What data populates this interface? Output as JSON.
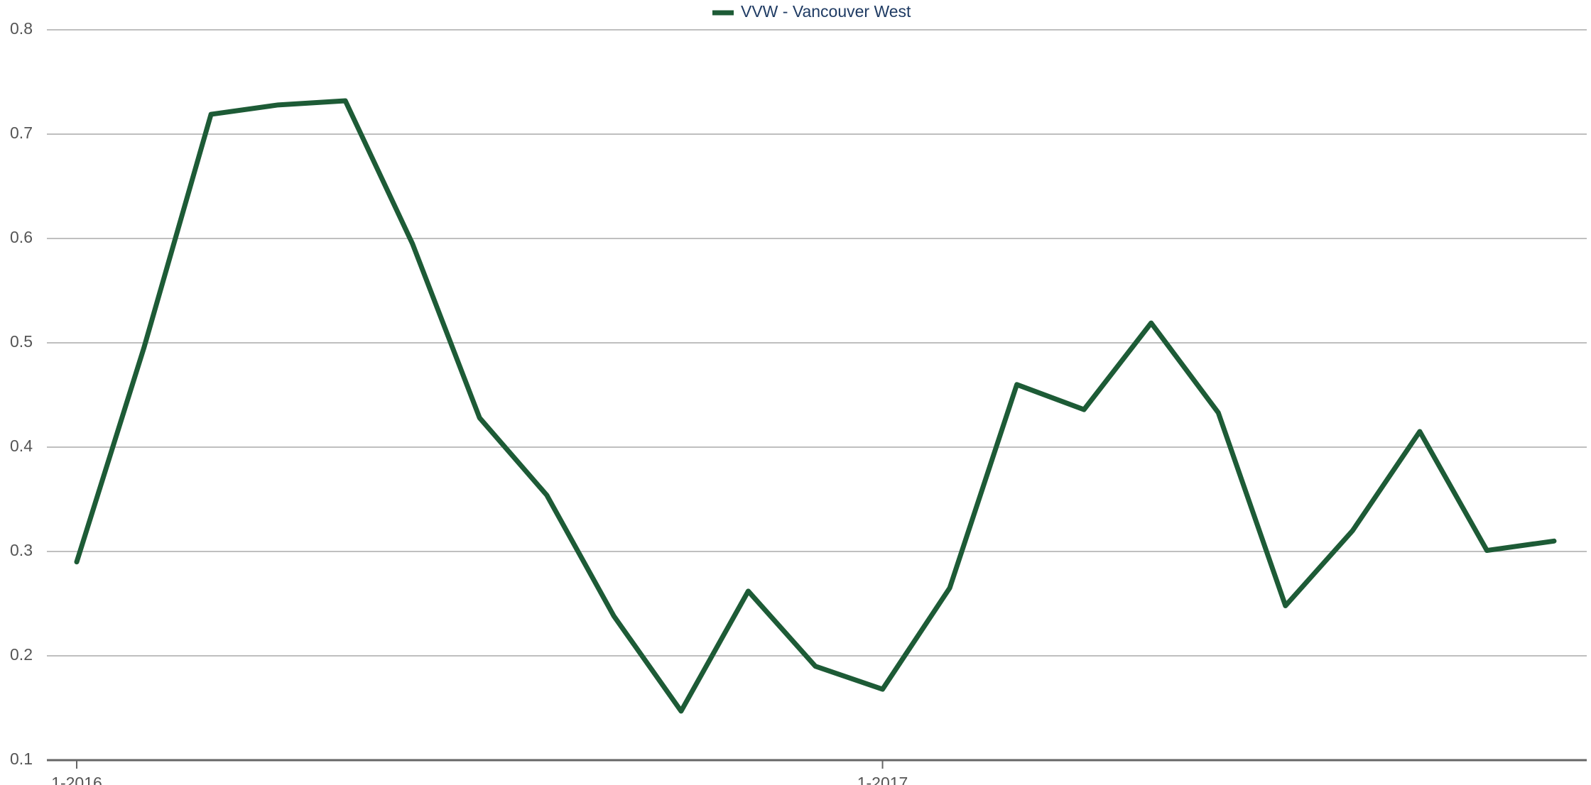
{
  "chart_data": {
    "type": "line",
    "categories": [
      "1-2016",
      null,
      null,
      null,
      null,
      null,
      null,
      null,
      null,
      null,
      null,
      null,
      "1-2017",
      null,
      null,
      null,
      null,
      null,
      null,
      null,
      null,
      null,
      null
    ],
    "series": [
      {
        "name": "VVW - Vancouver West",
        "color": "#1d5b36",
        "values": [
          0.29,
          0.495,
          0.719,
          0.728,
          0.732,
          0.595,
          0.428,
          0.354,
          0.238,
          0.147,
          0.262,
          0.19,
          0.168,
          0.265,
          0.46,
          0.436,
          0.519,
          0.433,
          0.248,
          0.32,
          0.415,
          0.301,
          0.31
        ]
      }
    ],
    "ylim": [
      0.1,
      0.8
    ],
    "yticks": [
      0.1,
      0.2,
      0.3,
      0.4,
      0.5,
      0.6,
      0.7,
      0.8
    ],
    "grid": true,
    "legend": "top"
  }
}
